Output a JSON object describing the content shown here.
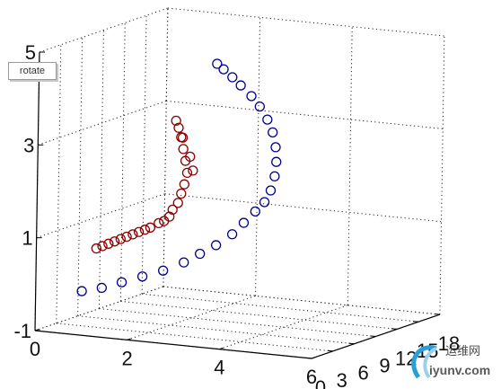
{
  "tooltip": {
    "label": "rotate"
  },
  "watermark": {
    "chinese": "运维网",
    "url": "iyunv.com"
  },
  "chart_data": {
    "type": "scatter",
    "projection": "3d",
    "grid": true,
    "x_ticks": [
      "0",
      "2",
      "4",
      "6"
    ],
    "y_ticks": [
      "0",
      "3",
      "6",
      "9",
      "12",
      "15",
      "18"
    ],
    "z_ticks": [
      "-1",
      "1",
      "3",
      "5"
    ],
    "xlim": [
      0,
      6
    ],
    "ylim": [
      0,
      18
    ],
    "zlim": [
      -1,
      5
    ],
    "series": [
      {
        "color": "#8b0000",
        "marker": "open-circle",
        "points": [
          [
            1.3,
            0.0,
            0.9
          ],
          [
            1.4,
            0.2,
            0.95
          ],
          [
            1.5,
            0.4,
            1.0
          ],
          [
            1.6,
            0.6,
            1.05
          ],
          [
            1.7,
            0.8,
            1.1
          ],
          [
            1.8,
            1.0,
            1.15
          ],
          [
            1.9,
            1.2,
            1.2
          ],
          [
            2.0,
            1.4,
            1.25
          ],
          [
            2.1,
            1.6,
            1.3
          ],
          [
            2.2,
            1.7,
            1.35
          ],
          [
            2.35,
            1.9,
            1.45
          ],
          [
            2.45,
            2.0,
            1.5
          ],
          [
            2.55,
            2.1,
            1.6
          ],
          [
            2.6,
            2.2,
            1.75
          ],
          [
            2.7,
            2.3,
            1.9
          ],
          [
            2.75,
            2.4,
            2.1
          ],
          [
            2.8,
            2.5,
            2.3
          ],
          [
            2.85,
            2.55,
            2.55
          ],
          [
            2.8,
            2.6,
            2.8
          ],
          [
            2.75,
            2.6,
            3.05
          ],
          [
            2.7,
            2.6,
            3.3
          ],
          [
            2.65,
            2.55,
            3.5
          ],
          [
            2.6,
            2.5,
            3.65
          ],
          [
            2.75,
            2.5,
            3.3
          ],
          [
            2.9,
            2.6,
            2.9
          ],
          [
            2.95,
            2.7,
            2.6
          ]
        ]
      },
      {
        "color": "#000090",
        "marker": "open-circle",
        "points": [
          [
            1.0,
            0.0,
            -0.05
          ],
          [
            1.4,
            0.2,
            0.05
          ],
          [
            1.8,
            0.4,
            0.2
          ],
          [
            2.2,
            0.7,
            0.35
          ],
          [
            2.6,
            1.0,
            0.5
          ],
          [
            3.0,
            1.3,
            0.7
          ],
          [
            3.3,
            1.6,
            0.9
          ],
          [
            3.6,
            1.9,
            1.1
          ],
          [
            3.9,
            2.2,
            1.35
          ],
          [
            4.1,
            2.5,
            1.6
          ],
          [
            4.3,
            2.8,
            1.85
          ],
          [
            4.45,
            3.1,
            2.05
          ],
          [
            4.55,
            3.3,
            2.3
          ],
          [
            4.6,
            3.5,
            2.6
          ],
          [
            4.6,
            3.7,
            2.9
          ],
          [
            4.55,
            3.9,
            3.2
          ],
          [
            4.45,
            4.1,
            3.5
          ],
          [
            4.3,
            4.3,
            3.75
          ],
          [
            4.1,
            4.5,
            4.0
          ],
          [
            3.9,
            4.6,
            4.2
          ],
          [
            3.65,
            4.7,
            4.4
          ],
          [
            3.45,
            4.8,
            4.55
          ],
          [
            3.25,
            4.85,
            4.7
          ],
          [
            3.1,
            4.9,
            4.8
          ]
        ]
      }
    ]
  }
}
